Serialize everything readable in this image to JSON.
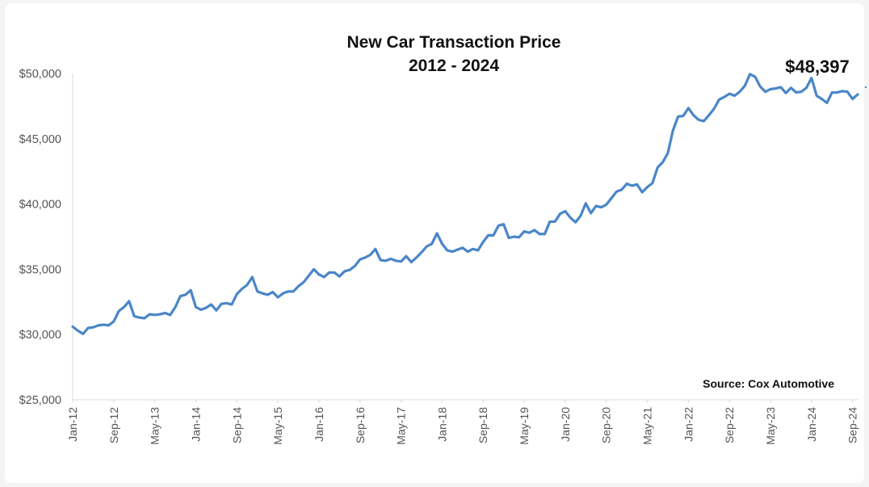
{
  "chart_data": {
    "type": "line",
    "title_lines": [
      "New Car Transaction Price",
      "2012 - 2024"
    ],
    "y_ticks": [
      "$25,000",
      "$30,000",
      "$35,000",
      "$40,000",
      "$45,000",
      "$50,000"
    ],
    "ylim": [
      25000,
      50000
    ],
    "x_ticks": [
      {
        "index": 0,
        "label": "Jan-12"
      },
      {
        "index": 8,
        "label": "Sep-12"
      },
      {
        "index": 16,
        "label": "May-13"
      },
      {
        "index": 24,
        "label": "Jan-14"
      },
      {
        "index": 32,
        "label": "Sep-14"
      },
      {
        "index": 40,
        "label": "May-15"
      },
      {
        "index": 48,
        "label": "Jan-16"
      },
      {
        "index": 56,
        "label": "Sep-16"
      },
      {
        "index": 64,
        "label": "May-17"
      },
      {
        "index": 72,
        "label": "Jan-18"
      },
      {
        "index": 80,
        "label": "Sep-18"
      },
      {
        "index": 88,
        "label": "May-19"
      },
      {
        "index": 96,
        "label": "Jan-20"
      },
      {
        "index": 104,
        "label": "Sep-20"
      },
      {
        "index": 112,
        "label": "May-21"
      },
      {
        "index": 120,
        "label": "Jan-22"
      },
      {
        "index": 128,
        "label": "Sep-22"
      },
      {
        "index": 136,
        "label": "May-23"
      },
      {
        "index": 144,
        "label": "Jan-24"
      },
      {
        "index": 152,
        "label": "Sep-24"
      }
    ],
    "x_range": [
      "Jan-12",
      "Sep-24"
    ],
    "series": [
      {
        "color": "#4a86c8",
        "values": [
          30600,
          30300,
          30050,
          30500,
          30550,
          30700,
          30750,
          30700,
          31000,
          31800,
          32100,
          32550,
          31400,
          31300,
          31250,
          31550,
          31500,
          31550,
          31650,
          31500,
          32100,
          32950,
          33050,
          33400,
          32100,
          31900,
          32050,
          32300,
          31850,
          32350,
          32400,
          32300,
          33100,
          33500,
          33800,
          34400,
          33300,
          33150,
          33050,
          33250,
          32850,
          33150,
          33300,
          33300,
          33700,
          34000,
          34500,
          35000,
          34600,
          34400,
          34750,
          34750,
          34450,
          34850,
          34950,
          35250,
          35750,
          35900,
          36100,
          36550,
          35700,
          35650,
          35800,
          35650,
          35600,
          36000,
          35550,
          35900,
          36300,
          36750,
          36950,
          37750,
          36950,
          36450,
          36350,
          36500,
          36650,
          36350,
          36550,
          36450,
          37100,
          37600,
          37600,
          38350,
          38450,
          37400,
          37500,
          37450,
          37900,
          37800,
          38000,
          37700,
          37700,
          38650,
          38650,
          39250,
          39450,
          38950,
          38600,
          39100,
          40050,
          39300,
          39850,
          39750,
          39950,
          40450,
          40950,
          41100,
          41550,
          41400,
          41500,
          40900,
          41300,
          41600,
          42800,
          43200,
          43900,
          45650,
          46700,
          46750,
          47350,
          46800,
          46450,
          46350,
          46800,
          47300,
          48000,
          48200,
          48450,
          48300,
          48600,
          49050,
          49950,
          49750,
          49000,
          48600,
          48800,
          48850,
          48950,
          48500,
          48900,
          48550,
          48600,
          48900,
          49650,
          48300,
          48050,
          47750,
          48550,
          48550,
          48650,
          48600,
          48050,
          48397
        ]
      }
    ],
    "callout": "$48,397",
    "source": "Source: Cox Automotive",
    "grid": false,
    "legend": "none"
  }
}
